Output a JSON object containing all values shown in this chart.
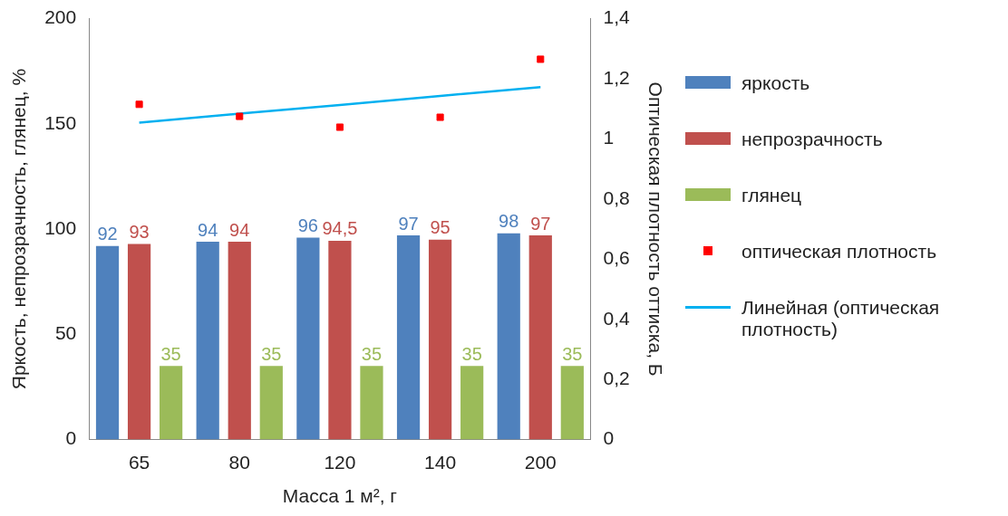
{
  "chart_data": {
    "type": "bar",
    "xlabel": "Масса 1 м², г",
    "ylabel": "Яркость, непрозрачность, глянец, %",
    "y2label": "Оптическая плотность оттиска, Б",
    "categories": [
      "65",
      "80",
      "120",
      "140",
      "200"
    ],
    "series": [
      {
        "name": "яркость",
        "color": "#4f81bd",
        "values": [
          92,
          94,
          96,
          97,
          98
        ],
        "value_labels": [
          "92",
          "94",
          "96",
          "97",
          "98"
        ]
      },
      {
        "name": "непрозрачность",
        "color": "#c0504d",
        "values": [
          93,
          94,
          94.5,
          95,
          97
        ],
        "value_labels": [
          "93",
          "94",
          "94,5",
          "95",
          "97"
        ]
      },
      {
        "name": "глянец",
        "color": "#9bbb59",
        "values": [
          35,
          35,
          35,
          35,
          35
        ],
        "value_labels": [
          "35",
          "35",
          "35",
          "35",
          "35"
        ]
      },
      {
        "name": "оптическая плотность",
        "type": "scatter",
        "axis": "y2",
        "marker": "square",
        "color": "#ff0000",
        "values": [
          1.115,
          1.075,
          1.039,
          1.072,
          1.265
        ]
      },
      {
        "name": "Линейная (оптическая плотность)",
        "type": "line",
        "axis": "y2",
        "marker": "none",
        "line_style": "solid",
        "color": "#00b0f0",
        "values": [
          1.054,
          1.084,
          1.113,
          1.143,
          1.172
        ]
      }
    ],
    "ylim": [
      0,
      200
    ],
    "yticks": [
      0,
      50,
      100,
      150,
      200
    ],
    "y2lim": [
      0,
      1.4
    ],
    "y2ticks": [
      0,
      {
        "value": 0.2,
        "label": "0,2"
      },
      {
        "value": 0.4,
        "label": "0,4"
      },
      {
        "value": 0.6,
        "label": "0,6"
      },
      {
        "value": 0.8,
        "label": "0,8"
      },
      1,
      {
        "value": 1.2,
        "label": "1,2"
      },
      {
        "value": 1.4,
        "label": "1,4"
      }
    ],
    "grid": false,
    "legend": "right"
  }
}
